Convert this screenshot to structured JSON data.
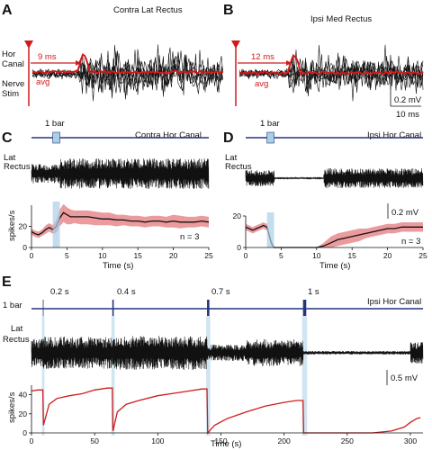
{
  "panels": {
    "A": {
      "letter": "A",
      "title": "Contra Lat Rectus",
      "latency": "9 ms",
      "avg": "avg"
    },
    "B": {
      "letter": "B",
      "title": "Ipsi Med Rectus",
      "latency": "12 ms",
      "avg": "avg",
      "scale_v": "0.2 mV",
      "scale_t": "10 ms"
    },
    "C": {
      "letter": "C",
      "title": "Contra Hor Canal",
      "bar": "1 bar",
      "trace": [
        "Lat",
        "Rectus"
      ],
      "n": "n = 3",
      "xlabel": "Time (s)",
      "ylabel": "spikes/s"
    },
    "D": {
      "letter": "D",
      "title": "Ipsi Hor Canal",
      "bar": "1 bar",
      "trace": [
        "Lat",
        "Rectus"
      ],
      "n": "n = 3",
      "xlabel": "Time (s)",
      "scale_v": "0.2 mV"
    },
    "E": {
      "letter": "E",
      "title": "Ipsi Hor Canal",
      "bar": "1 bar",
      "durations": [
        "0.2 s",
        "0.4 s",
        "0.7 s",
        "1 s"
      ],
      "trace": [
        "Lat",
        "Rectus"
      ],
      "xlabel": "Time (s)",
      "ylabel": "spikes/s",
      "scale_v": "0.5 mV"
    }
  },
  "stim_labels": {
    "canal": [
      "Hor",
      "Canal"
    ],
    "nerve": [
      "Nerve",
      "Stim"
    ]
  },
  "colors": {
    "bar": "#26347e",
    "avg": "#d01a1a",
    "band": "#e8898c",
    "stim_patch": "#a9cfe6",
    "trace": "#111111"
  },
  "chart_data": [
    {
      "type": "line",
      "panel": "C",
      "title": "Contra Hor Canal",
      "xlabel": "Time (s)",
      "ylabel": "spikes/s",
      "xlim": [
        0,
        25
      ],
      "ylim": [
        0,
        40
      ],
      "xticks": [
        0,
        5,
        10,
        15,
        20,
        25
      ],
      "yticks": [
        0,
        20
      ],
      "stim_interval": [
        3,
        4
      ],
      "series": [
        {
          "x": [
            0,
            0.5,
            1,
            1.5,
            2,
            2.5,
            3,
            3.5,
            4,
            4.5,
            5,
            5.5,
            6,
            7,
            8,
            9,
            10,
            11,
            12,
            13,
            14,
            15,
            16,
            17,
            18,
            19,
            20,
            21,
            22,
            23,
            24,
            25
          ],
          "values": [
            15,
            13,
            12,
            14,
            17,
            19,
            17,
            20,
            28,
            33,
            31,
            29,
            29,
            29,
            29,
            28,
            27,
            27,
            26,
            26,
            25,
            25,
            24,
            25,
            25,
            24,
            25,
            24,
            24,
            24,
            25,
            24
          ],
          "lower": [
            12,
            10,
            9,
            11,
            13,
            15,
            13,
            14,
            20,
            24,
            22,
            22,
            23,
            22,
            22,
            21,
            21,
            21,
            20,
            21,
            20,
            20,
            19,
            20,
            20,
            19,
            19,
            18,
            19,
            19,
            20,
            19
          ],
          "upper": [
            18,
            16,
            15,
            17,
            21,
            23,
            21,
            26,
            36,
            41,
            38,
            36,
            35,
            35,
            35,
            34,
            33,
            33,
            31,
            31,
            30,
            30,
            29,
            30,
            30,
            29,
            31,
            30,
            29,
            29,
            30,
            29
          ]
        }
      ]
    },
    {
      "type": "line",
      "panel": "D",
      "title": "Ipsi Hor Canal",
      "xlabel": "Time (s)",
      "xlim": [
        0,
        25
      ],
      "ylim": [
        0,
        20
      ],
      "xticks": [
        0,
        5,
        10,
        15,
        20,
        25
      ],
      "yticks": [
        0,
        20
      ],
      "stim_interval": [
        3,
        4
      ],
      "series": [
        {
          "x": [
            0,
            0.5,
            1,
            1.5,
            2,
            2.5,
            3,
            3.3,
            3.6,
            4,
            5,
            6,
            7,
            8,
            9,
            10,
            11,
            12,
            13,
            14,
            15,
            16,
            17,
            18,
            19,
            20,
            21,
            22,
            23,
            24,
            25
          ],
          "values": [
            13,
            12,
            11,
            12,
            13,
            14,
            13,
            8,
            3,
            0,
            0,
            0,
            0,
            0,
            0,
            0,
            1,
            3,
            5,
            6,
            7,
            8,
            9,
            10,
            11,
            12,
            12,
            13,
            13,
            13,
            13
          ],
          "lower": [
            11,
            10,
            9,
            10,
            11,
            12,
            11,
            6,
            1,
            0,
            0,
            0,
            0,
            0,
            0,
            0,
            0,
            0,
            1,
            2,
            3,
            4,
            6,
            7,
            8,
            9,
            9,
            10,
            10,
            10,
            10
          ],
          "upper": [
            15,
            14,
            13,
            14,
            15,
            16,
            15,
            10,
            5,
            0,
            0,
            0,
            0,
            0,
            0,
            0,
            3,
            7,
            9,
            10,
            11,
            12,
            12,
            13,
            14,
            15,
            15,
            16,
            16,
            16,
            16
          ]
        }
      ]
    },
    {
      "type": "line",
      "panel": "E",
      "title": "Ipsi Hor Canal",
      "xlabel": "Time (s)",
      "ylabel": "spikes/s",
      "xlim": [
        0,
        310
      ],
      "ylim": [
        0,
        50
      ],
      "xticks": [
        0,
        50,
        100,
        150,
        200,
        250,
        300
      ],
      "yticks": [
        0,
        20,
        40
      ],
      "stim_times": [
        9,
        64,
        139,
        215
      ],
      "series": [
        {
          "name": "",
          "x": [
            0,
            5,
            9,
            9.5,
            14,
            20,
            30,
            40,
            50,
            60,
            64,
            64.5,
            68,
            75,
            85,
            100,
            115,
            125,
            135,
            139,
            139.5,
            145,
            155,
            170,
            185,
            200,
            210,
            215,
            215.5,
            230,
            250,
            270,
            285,
            295,
            300,
            305,
            308
          ],
          "values": [
            44,
            45,
            45,
            8,
            30,
            36,
            39,
            41,
            45,
            47,
            47,
            2,
            22,
            30,
            34,
            39,
            42,
            44,
            46,
            46,
            0,
            8,
            15,
            22,
            28,
            32,
            34,
            34,
            0,
            0,
            0,
            0,
            2,
            6,
            11,
            15,
            16
          ]
        }
      ]
    }
  ]
}
